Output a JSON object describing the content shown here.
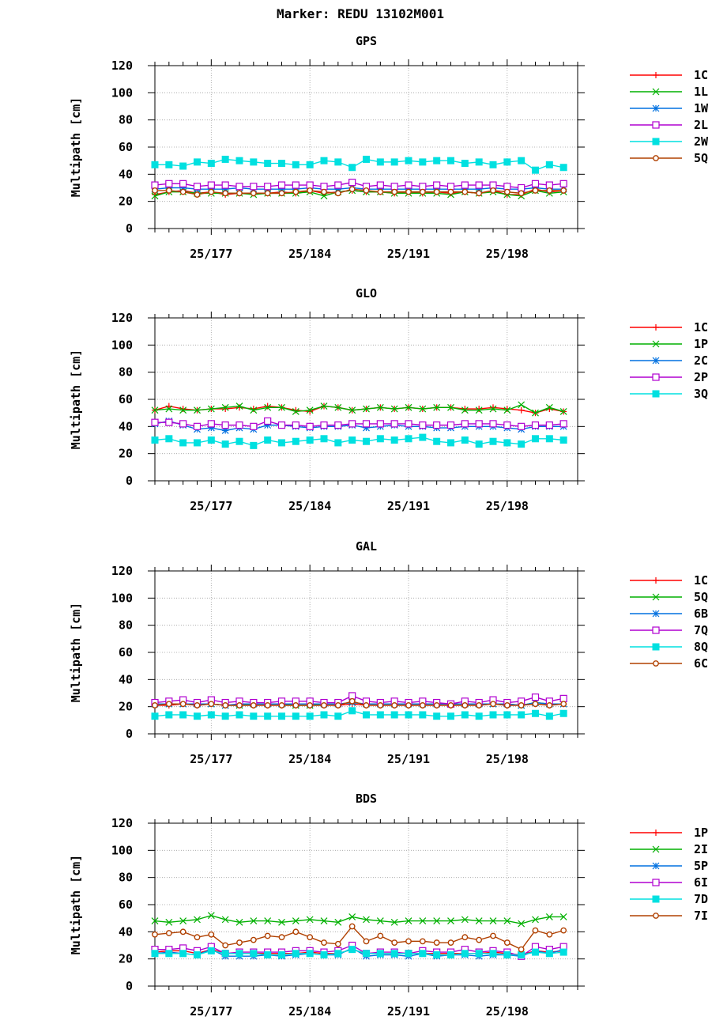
{
  "page_title": "Marker: REDU 13102M001",
  "x_tick_labels": [
    "25/177",
    "25/184",
    "25/191",
    "25/198"
  ],
  "chart_data": [
    {
      "type": "line",
      "title": "GPS",
      "ylabel": "Multipath [cm]",
      "xlabel": "",
      "ylim": [
        0,
        120
      ],
      "y_ticks": [
        0,
        20,
        40,
        60,
        80,
        100,
        120
      ],
      "xlim": [
        173,
        203
      ],
      "x_ticks": [
        177,
        184,
        191,
        198
      ],
      "grid": true,
      "legend": "right",
      "x": [
        173,
        174,
        175,
        176,
        177,
        178,
        179,
        180,
        181,
        182,
        183,
        184,
        185,
        186,
        187,
        188,
        189,
        190,
        191,
        192,
        193,
        194,
        195,
        196,
        197,
        198,
        199,
        200,
        201,
        202
      ],
      "series": [
        {
          "name": "1C",
          "color": "#ff0000",
          "marker": "plus",
          "values": [
            25,
            27,
            28,
            26,
            27,
            25,
            26,
            26,
            26,
            27,
            26,
            28,
            26,
            27,
            28,
            27,
            27,
            26,
            27,
            26,
            27,
            26,
            27,
            26,
            28,
            25,
            25,
            29,
            27,
            28
          ]
        },
        {
          "name": "1L",
          "color": "#00b000",
          "marker": "cross",
          "values": [
            24,
            27,
            27,
            26,
            26,
            26,
            26,
            25,
            26,
            26,
            26,
            27,
            24,
            27,
            28,
            27,
            27,
            26,
            26,
            26,
            26,
            25,
            27,
            26,
            27,
            25,
            24,
            28,
            26,
            27
          ]
        },
        {
          "name": "1W",
          "color": "#0070e0",
          "marker": "star",
          "values": [
            29,
            30,
            30,
            29,
            29,
            29,
            30,
            29,
            29,
            29,
            29,
            30,
            29,
            29,
            30,
            29,
            29,
            29,
            29,
            29,
            29,
            29,
            29,
            29,
            30,
            29,
            29,
            30,
            29,
            29
          ]
        },
        {
          "name": "2L",
          "color": "#b000d0",
          "marker": "square",
          "values": [
            32,
            33,
            33,
            31,
            32,
            32,
            31,
            31,
            31,
            32,
            32,
            32,
            31,
            32,
            34,
            31,
            32,
            31,
            32,
            31,
            32,
            31,
            32,
            32,
            32,
            31,
            30,
            33,
            32,
            33
          ]
        },
        {
          "name": "2W",
          "color": "#00e0e0",
          "marker": "filled-square",
          "values": [
            47,
            47,
            46,
            49,
            48,
            51,
            50,
            49,
            48,
            48,
            47,
            47,
            50,
            49,
            45,
            51,
            49,
            49,
            50,
            49,
            50,
            50,
            48,
            49,
            47,
            49,
            50,
            43,
            47,
            45
          ]
        },
        {
          "name": "5Q",
          "color": "#b04000",
          "marker": "circle",
          "values": [
            28,
            28,
            27,
            25,
            27,
            26,
            26,
            26,
            26,
            26,
            27,
            28,
            27,
            26,
            29,
            28,
            27,
            27,
            27,
            27,
            27,
            27,
            27,
            26,
            28,
            27,
            26,
            28,
            28,
            28
          ]
        }
      ]
    },
    {
      "type": "line",
      "title": "GLO",
      "ylabel": "Multipath [cm]",
      "xlabel": "",
      "ylim": [
        0,
        120
      ],
      "y_ticks": [
        0,
        20,
        40,
        60,
        80,
        100,
        120
      ],
      "xlim": [
        173,
        203
      ],
      "x_ticks": [
        177,
        184,
        191,
        198
      ],
      "grid": true,
      "legend": "right",
      "x": [
        173,
        174,
        175,
        176,
        177,
        178,
        179,
        180,
        181,
        182,
        183,
        184,
        185,
        186,
        187,
        188,
        189,
        190,
        191,
        192,
        193,
        194,
        195,
        196,
        197,
        198,
        199,
        200,
        201,
        202
      ],
      "series": [
        {
          "name": "1C",
          "color": "#ff0000",
          "marker": "plus",
          "values": [
            52,
            55,
            53,
            52,
            53,
            53,
            54,
            53,
            55,
            54,
            52,
            51,
            55,
            54,
            52,
            53,
            54,
            53,
            54,
            53,
            54,
            54,
            53,
            53,
            54,
            53,
            52,
            50,
            53,
            51
          ]
        },
        {
          "name": "1P",
          "color": "#00b000",
          "marker": "cross",
          "values": [
            52,
            53,
            52,
            52,
            53,
            54,
            55,
            52,
            54,
            54,
            51,
            52,
            55,
            54,
            52,
            53,
            54,
            53,
            54,
            53,
            54,
            54,
            52,
            52,
            53,
            52,
            56,
            50,
            54,
            51
          ]
        },
        {
          "name": "2C",
          "color": "#0070e0",
          "marker": "star",
          "values": [
            42,
            44,
            41,
            38,
            39,
            37,
            39,
            38,
            41,
            41,
            40,
            39,
            40,
            40,
            41,
            39,
            40,
            41,
            40,
            40,
            39,
            39,
            40,
            40,
            40,
            39,
            38,
            40,
            40,
            40
          ]
        },
        {
          "name": "2P",
          "color": "#b000d0",
          "marker": "square",
          "values": [
            43,
            43,
            42,
            40,
            42,
            41,
            41,
            40,
            44,
            41,
            41,
            40,
            41,
            41,
            42,
            42,
            42,
            42,
            42,
            41,
            41,
            41,
            42,
            42,
            42,
            41,
            40,
            41,
            41,
            42
          ]
        },
        {
          "name": "3Q",
          "color": "#00e0e0",
          "marker": "filled-square",
          "values": [
            30,
            31,
            28,
            28,
            30,
            27,
            29,
            26,
            30,
            28,
            29,
            30,
            31,
            28,
            30,
            29,
            31,
            30,
            31,
            32,
            29,
            28,
            30,
            27,
            29,
            28,
            27,
            31,
            31,
            30
          ]
        }
      ]
    },
    {
      "type": "line",
      "title": "GAL",
      "ylabel": "Multipath [cm]",
      "xlabel": "",
      "ylim": [
        0,
        120
      ],
      "y_ticks": [
        0,
        20,
        40,
        60,
        80,
        100,
        120
      ],
      "xlim": [
        173,
        203
      ],
      "x_ticks": [
        177,
        184,
        191,
        198
      ],
      "grid": true,
      "legend": "right",
      "x": [
        173,
        174,
        175,
        176,
        177,
        178,
        179,
        180,
        181,
        182,
        183,
        184,
        185,
        186,
        187,
        188,
        189,
        190,
        191,
        192,
        193,
        194,
        195,
        196,
        197,
        198,
        199,
        200,
        201,
        202
      ],
      "series": [
        {
          "name": "1C",
          "color": "#ff0000",
          "marker": "plus",
          "values": [
            21,
            21,
            22,
            21,
            22,
            21,
            21,
            21,
            21,
            21,
            21,
            21,
            21,
            21,
            22,
            21,
            21,
            21,
            21,
            21,
            21,
            21,
            21,
            21,
            22,
            21,
            21,
            22,
            21,
            22
          ]
        },
        {
          "name": "5Q",
          "color": "#00b000",
          "marker": "cross",
          "values": [
            22,
            22,
            22,
            22,
            22,
            21,
            21,
            22,
            22,
            22,
            21,
            21,
            22,
            22,
            23,
            22,
            22,
            22,
            22,
            22,
            22,
            22,
            22,
            22,
            22,
            22,
            21,
            23,
            22,
            22
          ]
        },
        {
          "name": "6B",
          "color": "#0070e0",
          "marker": "star",
          "values": [
            22,
            22,
            22,
            22,
            22,
            21,
            22,
            22,
            22,
            22,
            22,
            22,
            22,
            22,
            23,
            22,
            22,
            22,
            22,
            22,
            22,
            22,
            22,
            22,
            22,
            22,
            21,
            23,
            22,
            22
          ]
        },
        {
          "name": "7Q",
          "color": "#b000d0",
          "marker": "square",
          "values": [
            23,
            24,
            25,
            23,
            25,
            23,
            24,
            23,
            23,
            24,
            24,
            24,
            23,
            23,
            28,
            24,
            23,
            24,
            23,
            24,
            23,
            22,
            24,
            23,
            25,
            23,
            24,
            27,
            24,
            26
          ]
        },
        {
          "name": "8Q",
          "color": "#00e0e0",
          "marker": "filled-square",
          "values": [
            13,
            14,
            14,
            13,
            14,
            13,
            14,
            13,
            13,
            13,
            13,
            13,
            14,
            13,
            17,
            14,
            14,
            14,
            14,
            14,
            13,
            13,
            14,
            13,
            14,
            14,
            14,
            15,
            13,
            15
          ]
        },
        {
          "name": "6C",
          "color": "#b04000",
          "marker": "circle",
          "values": [
            21,
            22,
            22,
            21,
            22,
            21,
            21,
            21,
            21,
            21,
            21,
            21,
            21,
            21,
            24,
            21,
            21,
            21,
            21,
            21,
            21,
            21,
            21,
            21,
            22,
            21,
            21,
            22,
            21,
            22
          ]
        }
      ]
    },
    {
      "type": "line",
      "title": "BDS",
      "ylabel": "Multipath [cm]",
      "xlabel": "",
      "ylim": [
        0,
        120
      ],
      "y_ticks": [
        0,
        20,
        40,
        60,
        80,
        100,
        120
      ],
      "xlim": [
        173,
        203
      ],
      "x_ticks": [
        177,
        184,
        191,
        198
      ],
      "grid": true,
      "legend": "right",
      "x": [
        173,
        174,
        175,
        176,
        177,
        178,
        179,
        180,
        181,
        182,
        183,
        184,
        185,
        186,
        187,
        188,
        189,
        190,
        191,
        192,
        193,
        194,
        195,
        196,
        197,
        198,
        199,
        200,
        201,
        202
      ],
      "series": [
        {
          "name": "1P",
          "color": "#ff0000",
          "marker": "plus",
          "values": [
            25,
            26,
            26,
            24,
            27,
            24,
            24,
            24,
            24,
            24,
            24,
            25,
            24,
            24,
            27,
            24,
            24,
            24,
            24,
            24,
            24,
            24,
            24,
            24,
            25,
            24,
            23,
            26,
            25,
            26
          ]
        },
        {
          "name": "2I",
          "color": "#00b000",
          "marker": "cross",
          "values": [
            48,
            47,
            48,
            49,
            52,
            49,
            47,
            48,
            48,
            47,
            48,
            49,
            48,
            47,
            51,
            49,
            48,
            47,
            48,
            48,
            48,
            48,
            49,
            48,
            48,
            48,
            46,
            49,
            51,
            51
          ]
        },
        {
          "name": "5P",
          "color": "#0070e0",
          "marker": "star",
          "values": [
            24,
            25,
            24,
            23,
            27,
            22,
            22,
            22,
            23,
            22,
            23,
            24,
            23,
            23,
            28,
            22,
            23,
            23,
            22,
            24,
            22,
            23,
            23,
            22,
            23,
            23,
            22,
            26,
            24,
            27
          ]
        },
        {
          "name": "6I",
          "color": "#b000d0",
          "marker": "square",
          "values": [
            27,
            27,
            28,
            26,
            29,
            24,
            25,
            25,
            25,
            25,
            26,
            26,
            25,
            26,
            30,
            24,
            25,
            25,
            24,
            26,
            25,
            25,
            27,
            25,
            26,
            25,
            22,
            29,
            27,
            29
          ]
        },
        {
          "name": "7D",
          "color": "#00e0e0",
          "marker": "filled-square",
          "values": [
            24,
            24,
            24,
            23,
            26,
            24,
            24,
            24,
            23,
            23,
            24,
            24,
            23,
            24,
            27,
            24,
            24,
            24,
            24,
            24,
            23,
            23,
            24,
            24,
            24,
            23,
            23,
            25,
            24,
            25
          ]
        },
        {
          "name": "7I",
          "color": "#b04000",
          "marker": "circle",
          "values": [
            38,
            39,
            40,
            36,
            38,
            30,
            32,
            34,
            37,
            36,
            40,
            36,
            32,
            31,
            44,
            33,
            37,
            32,
            33,
            33,
            32,
            32,
            36,
            34,
            37,
            32,
            27,
            41,
            38,
            41
          ]
        }
      ]
    }
  ]
}
